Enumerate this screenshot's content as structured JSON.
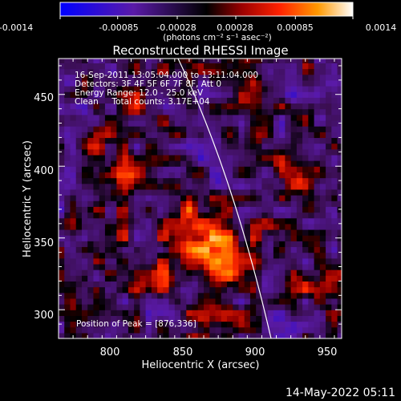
{
  "colorbar": {
    "tick_labels": [
      "-0.0014",
      "-0.00085",
      "-0.00028",
      "0.00028",
      "0.00085",
      "0.0014"
    ],
    "range": [
      -0.0014,
      0.0014
    ],
    "units": "(photons cm⁻² s⁻¹ asec⁻²)"
  },
  "chart_data": {
    "type": "heatmap",
    "title": "Reconstructed RHESSI Image",
    "xlabel": "Heliocentric X (arcsec)",
    "ylabel": "Heliocentric Y (arcsec)",
    "xlim": [
      765,
      960
    ],
    "ylim": [
      280,
      475
    ],
    "x_ticks": [
      800,
      850,
      900,
      950
    ],
    "y_ticks": [
      300,
      350,
      400,
      450
    ],
    "annotations": [
      "16-Sep-2011 13:05:04.000 to 13:11:04.000",
      "Detectors: 3F 4F 5F 6F 7F 8F, Att 0",
      "Energy Range: 12.0 - 25.0 keV",
      "Clean     Total counts: 3.17E+04"
    ],
    "peak_label": "Position of Peak = [876,336]",
    "peak_position": [
      876,
      336
    ],
    "sources": [
      {
        "x": 876,
        "y": 336,
        "strength": 0.0014
      },
      {
        "x": 862,
        "y": 352,
        "strength": 0.0008
      },
      {
        "x": 848,
        "y": 374,
        "strength": 0.0006
      },
      {
        "x": 810,
        "y": 390,
        "strength": 0.0007
      },
      {
        "x": 838,
        "y": 328,
        "strength": 0.0006
      },
      {
        "x": 795,
        "y": 350,
        "strength": 0.0005
      },
      {
        "x": 930,
        "y": 395,
        "strength": 0.0004
      },
      {
        "x": 825,
        "y": 445,
        "strength": 0.0004
      },
      {
        "x": 900,
        "y": 445,
        "strength": 0.0004
      },
      {
        "x": 905,
        "y": 345,
        "strength": 0.0004
      },
      {
        "x": 945,
        "y": 315,
        "strength": 0.0004
      },
      {
        "x": 790,
        "y": 415,
        "strength": 0.0003
      },
      {
        "x": 870,
        "y": 295,
        "strength": 0.0004
      }
    ]
  },
  "timestamp": "14-May-2022 05:11"
}
